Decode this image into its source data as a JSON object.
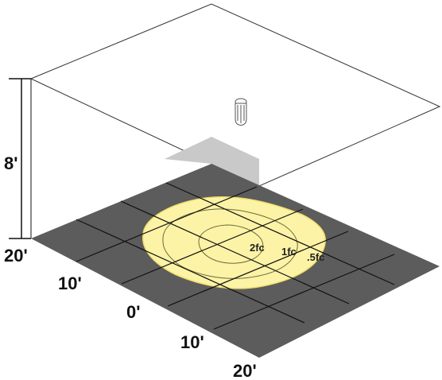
{
  "diagram": {
    "height_label": "8'",
    "floor_labels": {
      "left_20": "20'",
      "left_10": "10'",
      "center_0": "0'",
      "right_10": "10'",
      "right_20": "20'"
    },
    "contours": [
      {
        "label": "2fc",
        "level_fc": 2
      },
      {
        "label": "1fc",
        "level_fc": 1
      },
      {
        "label": ".5fc",
        "level_fc": 0.5
      }
    ],
    "colors": {
      "floor": "#5c5c5c",
      "grid_lines": "#111111",
      "light_pool": "#fdf3a6",
      "light_pool_edge": "#f3e47a",
      "ceiling_lines": "#333333",
      "shadow": "#c9c9c9"
    },
    "fixture_icon": "pendant-light-icon"
  }
}
